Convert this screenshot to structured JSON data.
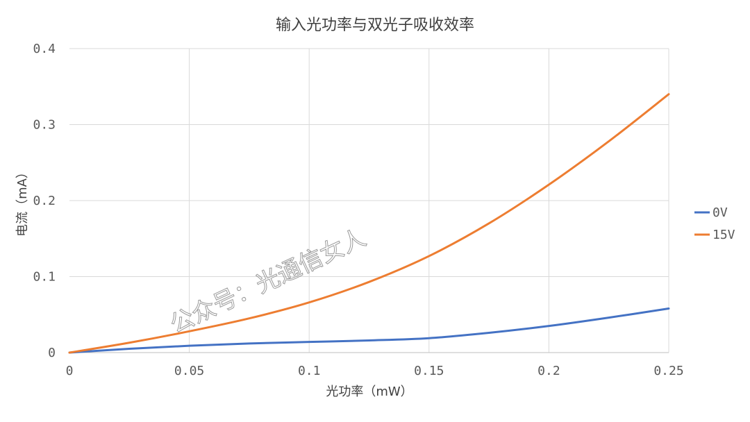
{
  "chart_data": {
    "type": "line",
    "title": "输入光功率与双光子吸收效率",
    "xlabel": "光功率（mW）",
    "ylabel": "电流（mA）",
    "xlim": [
      0,
      0.25
    ],
    "ylim": [
      0,
      0.4
    ],
    "xticks": [
      "0",
      "0.05",
      "0.1",
      "0.15",
      "0.2",
      "0.25"
    ],
    "yticks": [
      "0",
      "0.1",
      "0.2",
      "0.3",
      "0.4"
    ],
    "grid": true,
    "legend_position": "right",
    "series": [
      {
        "name": "0V",
        "color": "#4472C4",
        "points": [
          [
            0,
            0
          ],
          [
            0.025,
            0.005
          ],
          [
            0.05,
            0.009
          ],
          [
            0.075,
            0.012
          ],
          [
            0.1,
            0.014
          ],
          [
            0.125,
            0.016
          ],
          [
            0.15,
            0.019
          ],
          [
            0.175,
            0.026
          ],
          [
            0.2,
            0.035
          ],
          [
            0.225,
            0.046
          ],
          [
            0.25,
            0.058
          ]
        ]
      },
      {
        "name": "15V",
        "color": "#ED7D31",
        "points": [
          [
            0,
            0
          ],
          [
            0.025,
            0.013
          ],
          [
            0.05,
            0.028
          ],
          [
            0.075,
            0.045
          ],
          [
            0.1,
            0.066
          ],
          [
            0.125,
            0.093
          ],
          [
            0.15,
            0.127
          ],
          [
            0.175,
            0.17
          ],
          [
            0.2,
            0.221
          ],
          [
            0.225,
            0.278
          ],
          [
            0.25,
            0.34
          ]
        ]
      }
    ]
  },
  "watermark": "公众号：光通信女人"
}
